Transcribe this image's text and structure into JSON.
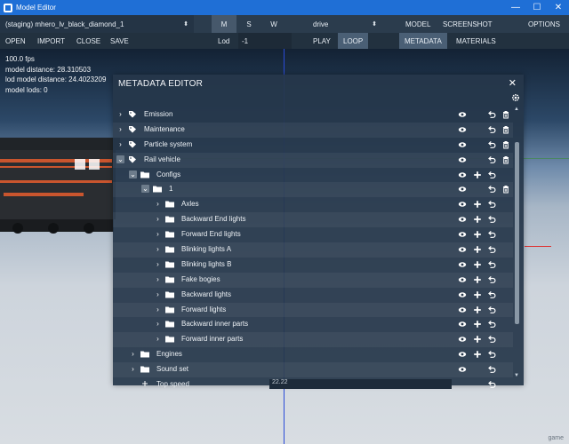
{
  "window": {
    "title": "Model Editor",
    "min": "—",
    "max": "☐",
    "close": "✕"
  },
  "toolbar": {
    "model_select": "(staging) mhero_lv_black_diamond_1",
    "view_m": "M",
    "view_s": "S",
    "view_w": "W",
    "anim_select": "drive",
    "model_menu": "MODEL",
    "screenshot_menu": "SCREENSHOT",
    "options_menu": "OPTIONS",
    "open": "OPEN",
    "import": "IMPORT",
    "close": "CLOSE",
    "save": "SAVE",
    "lod_label": "Lod",
    "lod_value": "-1",
    "play": "PLAY",
    "loop": "LOOP",
    "metadata_tab": "METADATA",
    "materials_tab": "MATERIALS"
  },
  "stats": {
    "fps": "100.0 fps",
    "model_distance": "model distance: 28.310503",
    "lod_model_distance": "lod model distance: 24.4023209",
    "model_lods": "model lods: 0"
  },
  "panel": {
    "title": "METADATA EDITOR",
    "rows": [
      {
        "label": "Emission"
      },
      {
        "label": "Maintenance"
      },
      {
        "label": "Particle system"
      },
      {
        "label": "Rail vehicle"
      },
      {
        "label": "Configs"
      },
      {
        "label": "1"
      },
      {
        "label": "Axles"
      },
      {
        "label": "Backward End lights"
      },
      {
        "label": "Forward End lights"
      },
      {
        "label": "Blinking lights A"
      },
      {
        "label": "Blinking lights B"
      },
      {
        "label": "Fake bogies"
      },
      {
        "label": "Backward lights"
      },
      {
        "label": "Forward lights"
      },
      {
        "label": "Backward inner parts"
      },
      {
        "label": "Forward inner parts"
      },
      {
        "label": "Engines"
      },
      {
        "label": "Sound set"
      },
      {
        "label": "Top speed",
        "value": "22.22"
      }
    ]
  },
  "watermark": "game",
  "icons": {
    "tag": "tag-icon",
    "folder": "folder-icon",
    "eye": "eye-icon",
    "undo": "undo-icon",
    "trash": "trash-icon",
    "plus": "plus-icon",
    "gear": "gear-icon",
    "speed": "speed-icon"
  },
  "colors": {
    "titlebar": "#1f6fd6",
    "toolbar": "#2b3c4d",
    "panel": "#26374a",
    "active_toggle": "#46586b"
  }
}
